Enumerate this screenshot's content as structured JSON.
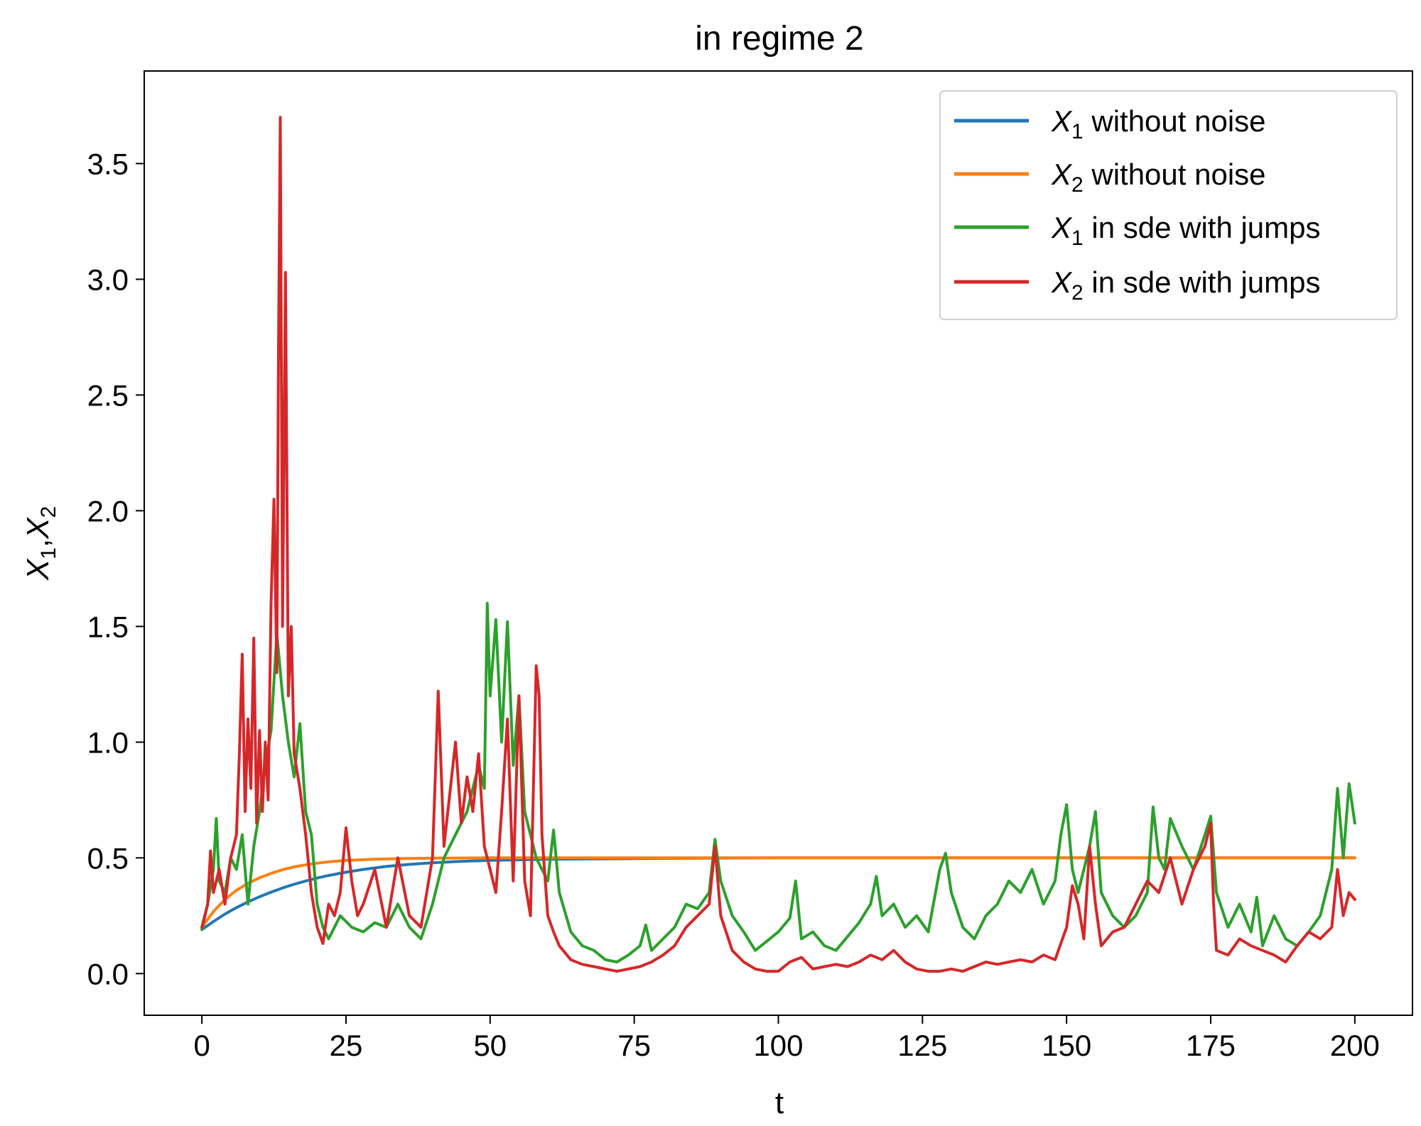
{
  "chart_data": {
    "type": "line",
    "title": "in regime 2",
    "xlabel": "t",
    "ylabel": {
      "var1": "X",
      "sub1": "1",
      "sep": ",",
      "var2": "X",
      "sub2": "2"
    },
    "xlim": [
      -10,
      210
    ],
    "ylim": [
      -0.18,
      3.9
    ],
    "xticks": [
      0,
      25,
      50,
      75,
      100,
      125,
      150,
      175,
      200
    ],
    "yticks": [
      0.0,
      0.5,
      1.0,
      1.5,
      2.0,
      2.5,
      3.0,
      3.5
    ],
    "xtick_labels": [
      "0",
      "25",
      "50",
      "75",
      "100",
      "125",
      "150",
      "175",
      "200"
    ],
    "ytick_labels": [
      "0.0",
      "0.5",
      "1.0",
      "1.5",
      "2.0",
      "2.5",
      "3.0",
      "3.5"
    ],
    "grid": false,
    "legend_position": "top-right",
    "series": [
      {
        "name": "X1 without noise",
        "legend": {
          "var": "X",
          "sub": "1",
          "text": " without noise"
        },
        "color": "#1f77b4",
        "x": [
          0,
          2,
          4,
          6,
          8,
          10,
          12,
          14,
          16,
          18,
          20,
          22,
          25,
          28,
          32,
          36,
          40,
          45,
          50,
          60,
          80,
          100,
          150,
          200
        ],
        "y": [
          0.19,
          0.225,
          0.257,
          0.285,
          0.31,
          0.332,
          0.352,
          0.37,
          0.386,
          0.4,
          0.413,
          0.424,
          0.438,
          0.45,
          0.463,
          0.472,
          0.479,
          0.485,
          0.489,
          0.494,
          0.498,
          0.5,
          0.5,
          0.5
        ]
      },
      {
        "name": "X2 without noise",
        "legend": {
          "var": "X",
          "sub": "2",
          "text": " without noise"
        },
        "color": "#ff7f0e",
        "x": [
          0,
          2,
          4,
          6,
          8,
          10,
          12,
          14,
          16,
          18,
          20,
          22,
          25,
          30,
          35,
          40,
          50,
          200
        ],
        "y": [
          0.2,
          0.268,
          0.32,
          0.36,
          0.39,
          0.414,
          0.433,
          0.449,
          0.461,
          0.47,
          0.477,
          0.483,
          0.489,
          0.494,
          0.497,
          0.499,
          0.5,
          0.5
        ]
      },
      {
        "name": "X1 in sde with jumps",
        "legend": {
          "var": "X",
          "sub": "1",
          "text": " in sde with jumps"
        },
        "color": "#2ca02c",
        "x": [
          0,
          1,
          2,
          2.5,
          3,
          4,
          5,
          6,
          7,
          8,
          9,
          10,
          11,
          12,
          13,
          14,
          15,
          16,
          17,
          18,
          19,
          20,
          21,
          22,
          24,
          26,
          28,
          30,
          32,
          34,
          36,
          38,
          40,
          42,
          44,
          46,
          48,
          49,
          49.5,
          50,
          51,
          52,
          53,
          54,
          55,
          56,
          57,
          58,
          59,
          60,
          61,
          62,
          64,
          66,
          68,
          70,
          72,
          74,
          76,
          77,
          78,
          80,
          82,
          84,
          86,
          88,
          89,
          90,
          92,
          94,
          96,
          98,
          100,
          102,
          103,
          104,
          106,
          108,
          110,
          112,
          114,
          116,
          117,
          118,
          120,
          122,
          124,
          126,
          128,
          129,
          130,
          132,
          134,
          136,
          138,
          140,
          142,
          144,
          146,
          148,
          149,
          150,
          151,
          152,
          154,
          155,
          156,
          158,
          160,
          162,
          164,
          165,
          166,
          167,
          168,
          170,
          172,
          174,
          175,
          176,
          178,
          180,
          182,
          183,
          184,
          186,
          188,
          190,
          192,
          194,
          196,
          197,
          198,
          199,
          200
        ],
        "y": [
          0.19,
          0.3,
          0.45,
          0.67,
          0.4,
          0.35,
          0.5,
          0.45,
          0.6,
          0.3,
          0.55,
          0.7,
          0.9,
          1.05,
          1.47,
          1.2,
          1.0,
          0.85,
          1.08,
          0.7,
          0.6,
          0.3,
          0.2,
          0.15,
          0.25,
          0.2,
          0.18,
          0.22,
          0.2,
          0.3,
          0.2,
          0.15,
          0.3,
          0.5,
          0.6,
          0.7,
          0.9,
          0.8,
          1.6,
          1.2,
          1.53,
          1.0,
          1.52,
          0.9,
          1.2,
          0.7,
          0.6,
          0.5,
          0.45,
          0.4,
          0.62,
          0.35,
          0.18,
          0.12,
          0.1,
          0.06,
          0.05,
          0.08,
          0.12,
          0.21,
          0.1,
          0.15,
          0.2,
          0.3,
          0.28,
          0.35,
          0.58,
          0.4,
          0.25,
          0.18,
          0.1,
          0.14,
          0.18,
          0.24,
          0.4,
          0.15,
          0.18,
          0.12,
          0.1,
          0.16,
          0.22,
          0.3,
          0.42,
          0.25,
          0.3,
          0.2,
          0.25,
          0.18,
          0.45,
          0.52,
          0.35,
          0.2,
          0.15,
          0.25,
          0.3,
          0.4,
          0.35,
          0.45,
          0.3,
          0.4,
          0.6,
          0.73,
          0.45,
          0.35,
          0.55,
          0.7,
          0.35,
          0.25,
          0.2,
          0.25,
          0.35,
          0.72,
          0.5,
          0.45,
          0.67,
          0.55,
          0.45,
          0.6,
          0.68,
          0.35,
          0.2,
          0.3,
          0.18,
          0.33,
          0.12,
          0.25,
          0.15,
          0.12,
          0.18,
          0.25,
          0.45,
          0.8,
          0.5,
          0.82,
          0.65
        ]
      },
      {
        "name": "X2 in sde with jumps",
        "legend": {
          "var": "X",
          "sub": "2",
          "text": " in sde with jumps"
        },
        "color": "#d62728",
        "x": [
          0,
          1,
          1.5,
          2,
          3,
          4,
          5,
          6,
          6.5,
          7,
          7.5,
          8,
          8.5,
          9,
          9.5,
          10,
          10.5,
          11,
          11.5,
          12,
          12.5,
          13,
          13.3,
          13.6,
          14,
          14.5,
          15,
          15.5,
          16,
          17,
          18,
          19,
          20,
          21,
          22,
          23,
          24,
          25,
          26,
          27,
          28,
          30,
          32,
          34,
          36,
          38,
          40,
          41,
          42,
          44,
          45,
          46,
          47,
          48,
          49,
          50,
          51,
          52,
          53,
          54,
          55,
          56,
          57,
          58,
          58.5,
          59,
          60,
          61,
          62,
          64,
          66,
          68,
          70,
          72,
          74,
          76,
          78,
          80,
          82,
          84,
          86,
          88,
          89,
          90,
          92,
          94,
          96,
          98,
          100,
          102,
          104,
          106,
          108,
          110,
          112,
          114,
          116,
          118,
          120,
          122,
          124,
          126,
          128,
          130,
          132,
          134,
          136,
          138,
          140,
          142,
          144,
          146,
          148,
          150,
          151,
          152,
          153,
          154,
          155,
          156,
          158,
          160,
          162,
          164,
          166,
          168,
          170,
          172,
          174,
          175,
          175.5,
          176,
          178,
          180,
          182,
          184,
          186,
          188,
          190,
          192,
          194,
          196,
          197,
          198,
          199,
          200
        ],
        "y": [
          0.2,
          0.3,
          0.53,
          0.35,
          0.45,
          0.3,
          0.5,
          0.6,
          0.95,
          1.38,
          0.7,
          1.1,
          0.8,
          1.45,
          0.65,
          1.05,
          0.7,
          1.0,
          0.75,
          1.6,
          2.05,
          1.3,
          2.7,
          3.7,
          1.5,
          3.03,
          1.2,
          1.5,
          0.95,
          0.8,
          0.6,
          0.35,
          0.2,
          0.13,
          0.3,
          0.25,
          0.35,
          0.63,
          0.4,
          0.25,
          0.3,
          0.45,
          0.2,
          0.5,
          0.25,
          0.2,
          0.5,
          1.22,
          0.55,
          1.0,
          0.65,
          0.85,
          0.7,
          0.95,
          0.55,
          0.45,
          0.35,
          0.7,
          1.1,
          0.4,
          1.2,
          0.4,
          0.25,
          1.33,
          1.2,
          0.6,
          0.25,
          0.18,
          0.12,
          0.06,
          0.04,
          0.03,
          0.02,
          0.01,
          0.02,
          0.03,
          0.05,
          0.08,
          0.12,
          0.2,
          0.25,
          0.3,
          0.55,
          0.25,
          0.1,
          0.05,
          0.02,
          0.01,
          0.01,
          0.05,
          0.07,
          0.02,
          0.03,
          0.04,
          0.03,
          0.05,
          0.08,
          0.06,
          0.1,
          0.05,
          0.02,
          0.01,
          0.01,
          0.02,
          0.01,
          0.03,
          0.05,
          0.04,
          0.05,
          0.06,
          0.05,
          0.08,
          0.06,
          0.2,
          0.38,
          0.3,
          0.15,
          0.55,
          0.3,
          0.12,
          0.18,
          0.2,
          0.3,
          0.4,
          0.35,
          0.5,
          0.3,
          0.45,
          0.55,
          0.65,
          0.3,
          0.1,
          0.08,
          0.15,
          0.12,
          0.1,
          0.08,
          0.05,
          0.12,
          0.18,
          0.15,
          0.2,
          0.45,
          0.25,
          0.35,
          0.32
        ]
      }
    ]
  }
}
